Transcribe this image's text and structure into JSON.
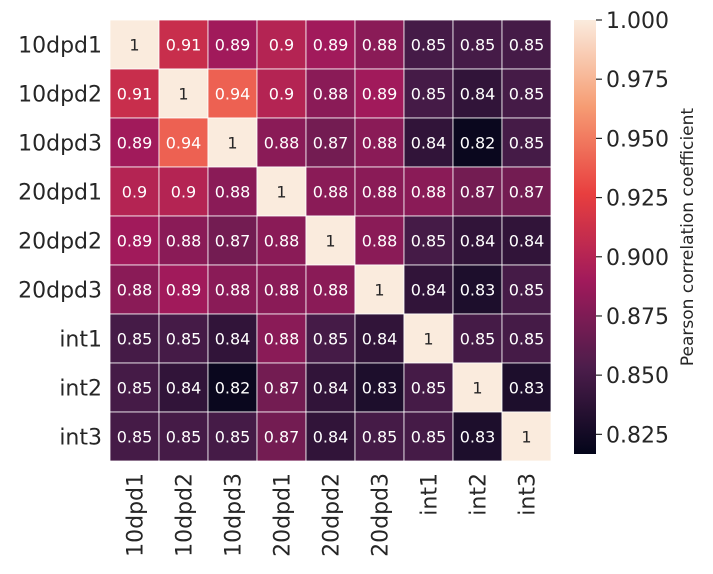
{
  "chart_data": {
    "type": "heatmap",
    "rows": [
      "10dpd1",
      "10dpd2",
      "10dpd3",
      "20dpd1",
      "20dpd2",
      "20dpd3",
      "int1",
      "int2",
      "int3"
    ],
    "columns": [
      "10dpd1",
      "10dpd2",
      "10dpd3",
      "20dpd1",
      "20dpd2",
      "20dpd3",
      "int1",
      "int2",
      "int3"
    ],
    "values": [
      [
        1,
        0.91,
        0.89,
        0.9,
        0.89,
        0.88,
        0.85,
        0.85,
        0.85
      ],
      [
        0.91,
        1,
        0.94,
        0.9,
        0.88,
        0.89,
        0.85,
        0.84,
        0.85
      ],
      [
        0.89,
        0.94,
        1,
        0.88,
        0.87,
        0.88,
        0.84,
        0.82,
        0.85
      ],
      [
        0.9,
        0.9,
        0.88,
        1,
        0.88,
        0.88,
        0.88,
        0.87,
        0.87
      ],
      [
        0.89,
        0.88,
        0.87,
        0.88,
        1,
        0.88,
        0.85,
        0.84,
        0.84
      ],
      [
        0.88,
        0.89,
        0.88,
        0.88,
        0.88,
        1,
        0.84,
        0.83,
        0.85
      ],
      [
        0.85,
        0.85,
        0.84,
        0.88,
        0.85,
        0.84,
        1,
        0.85,
        0.85
      ],
      [
        0.85,
        0.84,
        0.82,
        0.87,
        0.84,
        0.83,
        0.85,
        1,
        0.83
      ],
      [
        0.85,
        0.85,
        0.85,
        0.87,
        0.84,
        0.85,
        0.85,
        0.83,
        1
      ]
    ],
    "value_labels": [
      [
        "1",
        "0.91",
        "0.89",
        "0.9",
        "0.89",
        "0.88",
        "0.85",
        "0.85",
        "0.85"
      ],
      [
        "0.91",
        "1",
        "0.94",
        "0.9",
        "0.88",
        "0.89",
        "0.85",
        "0.84",
        "0.85"
      ],
      [
        "0.89",
        "0.94",
        "1",
        "0.88",
        "0.87",
        "0.88",
        "0.84",
        "0.82",
        "0.85"
      ],
      [
        "0.9",
        "0.9",
        "0.88",
        "1",
        "0.88",
        "0.88",
        "0.88",
        "0.87",
        "0.87"
      ],
      [
        "0.89",
        "0.88",
        "0.87",
        "0.88",
        "1",
        "0.88",
        "0.85",
        "0.84",
        "0.84"
      ],
      [
        "0.88",
        "0.89",
        "0.88",
        "0.88",
        "0.88",
        "1",
        "0.84",
        "0.83",
        "0.85"
      ],
      [
        "0.85",
        "0.85",
        "0.84",
        "0.88",
        "0.85",
        "0.84",
        "1",
        "0.85",
        "0.85"
      ],
      [
        "0.85",
        "0.84",
        "0.82",
        "0.87",
        "0.84",
        "0.83",
        "0.85",
        "1",
        "0.83"
      ],
      [
        "0.85",
        "0.85",
        "0.85",
        "0.87",
        "0.84",
        "0.85",
        "0.85",
        "0.83",
        "1"
      ]
    ],
    "colorbar": {
      "label": "Pearson correlation coefficient",
      "range": [
        0.8167,
        1.0
      ],
      "ticks": [
        1.0,
        0.975,
        0.95,
        0.925,
        0.9,
        0.875,
        0.85,
        0.825
      ],
      "tick_labels": [
        "1.000",
        "0.975",
        "0.950",
        "0.925",
        "0.900",
        "0.875",
        "0.850",
        "0.825"
      ],
      "colormap": "rocket",
      "colormap_stops": [
        "#03051a",
        "#4c1d4b",
        "#a11a5b",
        "#e83f3f",
        "#f69c73",
        "#faebdd"
      ]
    },
    "cell_border_color": "#ffffff",
    "label_dark_color": "#262626",
    "label_light_color": "#ffffff",
    "xtick_rotation": "vertical",
    "legend": "none",
    "grid": false
  }
}
